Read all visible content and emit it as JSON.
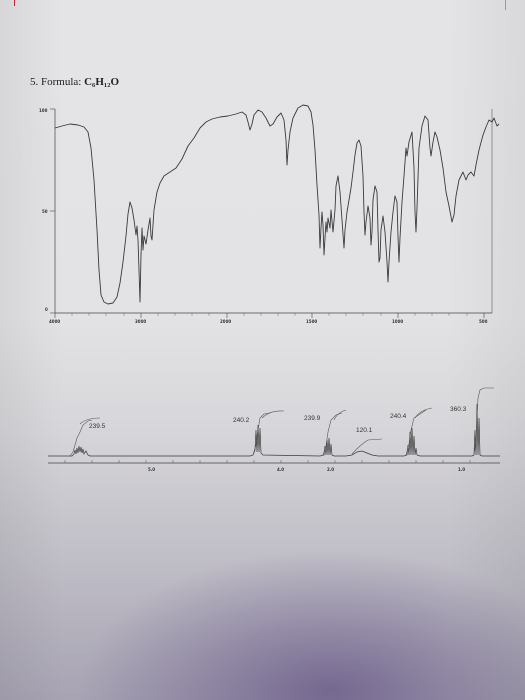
{
  "document": {
    "problem_label": "5. Formula: ",
    "formula": "C₆H₁₂O"
  },
  "ir_spectrum": {
    "y_ticks": [
      "100",
      "50",
      "0"
    ],
    "x_ticks": [
      "4000",
      "3000",
      "2000",
      "1500",
      "1000",
      "500"
    ]
  },
  "nmr_spectrum": {
    "integrals": [
      "239.5",
      "240.2",
      "239.9",
      "120.1",
      "240.4",
      "360.3"
    ],
    "ppm_ticks": [
      "5.0",
      "4.0",
      "2.0",
      "1.0"
    ]
  },
  "colors": {
    "paper": "#e4e4e6",
    "ink": "#333333",
    "shadow": "#4b3773"
  }
}
